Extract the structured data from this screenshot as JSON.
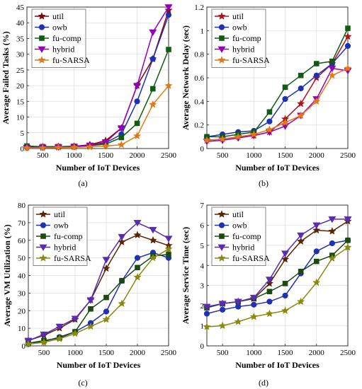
{
  "chart_data": [
    {
      "type": "line",
      "caption": "(a)",
      "xlabel": "Number of IoT Devices",
      "ylabel": "Average Failed Tasks (%)",
      "x": [
        250,
        500,
        750,
        1000,
        1250,
        1500,
        1750,
        2000,
        2250,
        2500
      ],
      "xticks": [
        500,
        1000,
        1500,
        2000,
        2500
      ],
      "xlim": [
        250,
        2500
      ],
      "ylim": [
        0,
        45
      ],
      "yticks": [
        0,
        5,
        10,
        15,
        20,
        25,
        30,
        35,
        40,
        45
      ],
      "ytick_labels": [
        "0",
        "5",
        "10",
        "15",
        "20",
        "25",
        "30",
        "35",
        "40",
        "45"
      ],
      "grid": true,
      "legend_position": "top-left",
      "series": [
        {
          "name": "util",
          "color": "#8b0000",
          "marker": "star",
          "values": [
            0.5,
            0.5,
            0.6,
            0.7,
            1.2,
            2.5,
            6.5,
            20,
            28.5,
            44
          ]
        },
        {
          "name": "owb",
          "color": "#1e30b4",
          "marker": "circle",
          "values": [
            0.5,
            0.5,
            0.6,
            0.7,
            1.0,
            1.8,
            4.5,
            15,
            28.5,
            42.5
          ]
        },
        {
          "name": "fu-comp",
          "color": "#0e5c12",
          "marker": "square",
          "values": [
            0.8,
            0.6,
            0.6,
            0.7,
            0.9,
            1.4,
            3.5,
            8,
            19,
            31.5
          ]
        },
        {
          "name": "hybrid",
          "color": "#9400b8",
          "marker": "triangle-down",
          "values": [
            0.3,
            0.4,
            0.5,
            0.6,
            1.0,
            2.0,
            6.5,
            20,
            37,
            45
          ]
        },
        {
          "name": "fu-SARSA",
          "color": "#e07a16",
          "marker": "star",
          "values": [
            0.2,
            0.2,
            0.3,
            0.4,
            0.5,
            0.8,
            1.2,
            4,
            14,
            20
          ]
        }
      ]
    },
    {
      "type": "line",
      "caption": "(b)",
      "xlabel": "Number of IoT Devices",
      "ylabel": "Average Network Delay (sec)",
      "x": [
        250,
        500,
        750,
        1000,
        1250,
        1500,
        1750,
        2000,
        2250,
        2500
      ],
      "xticks": [
        500,
        1000,
        1500,
        2000,
        2500
      ],
      "xlim": [
        250,
        2500
      ],
      "ylim": [
        0,
        1.2
      ],
      "yticks": [
        0,
        0.2,
        0.4,
        0.6,
        0.8,
        1.0,
        1.2
      ],
      "ytick_labels": [
        "0",
        "0.2",
        "0.4",
        "0.6",
        "0.8",
        "1",
        "1.2"
      ],
      "grid": true,
      "legend_position": "top-left",
      "series": [
        {
          "name": "util",
          "color": "#b0101a",
          "marker": "star",
          "values": [
            0.07,
            0.08,
            0.1,
            0.11,
            0.14,
            0.25,
            0.38,
            0.6,
            0.72,
            0.95
          ]
        },
        {
          "name": "owb",
          "color": "#1e30b4",
          "marker": "circle",
          "values": [
            0.1,
            0.12,
            0.14,
            0.15,
            0.23,
            0.42,
            0.51,
            0.62,
            0.72,
            0.87
          ]
        },
        {
          "name": "fu-comp",
          "color": "#0e5c12",
          "marker": "square",
          "values": [
            0.1,
            0.1,
            0.12,
            0.14,
            0.31,
            0.52,
            0.62,
            0.72,
            0.74,
            1.02
          ]
        },
        {
          "name": "hybrid",
          "color": "#9400b8",
          "marker": "triangle-down",
          "values": [
            0.06,
            0.07,
            0.09,
            0.11,
            0.14,
            0.19,
            0.28,
            0.42,
            0.68,
            0.66
          ]
        },
        {
          "name": "fu-SARSA",
          "color": "#e07a16",
          "marker": "star",
          "values": [
            0.07,
            0.08,
            0.1,
            0.12,
            0.16,
            0.22,
            0.28,
            0.4,
            0.62,
            0.68
          ]
        }
      ]
    },
    {
      "type": "line",
      "caption": "(c)",
      "xlabel": "Number of IoT Devices",
      "ylabel": "Average VM Utilization (%)",
      "x": [
        250,
        500,
        750,
        1000,
        1250,
        1500,
        1750,
        2000,
        2250,
        2500
      ],
      "xticks": [
        500,
        1000,
        1500,
        2000,
        2500
      ],
      "xlim": [
        250,
        2500
      ],
      "ylim": [
        0,
        80
      ],
      "yticks": [
        0,
        10,
        20,
        30,
        40,
        50,
        60,
        70,
        80
      ],
      "ytick_labels": [
        "0",
        "10",
        "20",
        "30",
        "40",
        "50",
        "60",
        "70",
        "80"
      ],
      "grid": true,
      "legend_position": "top-left",
      "series": [
        {
          "name": "util",
          "color": "#5a2400",
          "marker": "star",
          "values": [
            3,
            6,
            10,
            15,
            26,
            44,
            59,
            63,
            60,
            57
          ]
        },
        {
          "name": "owb",
          "color": "#1e30b4",
          "marker": "circle",
          "values": [
            1,
            2.5,
            5,
            8,
            13,
            19.5,
            37,
            50,
            53,
            50
          ]
        },
        {
          "name": "fu-comp",
          "color": "#1a4a10",
          "marker": "square",
          "values": [
            1.5,
            3,
            4.5,
            8,
            21,
            27.5,
            37,
            44.5,
            51,
            52
          ]
        },
        {
          "name": "hybrid",
          "color": "#5a2cb4",
          "marker": "triangle-down",
          "values": [
            3,
            6.5,
            11,
            15.5,
            26,
            49,
            62,
            70,
            66,
            61
          ]
        },
        {
          "name": "fu-SARSA",
          "color": "#8a8a10",
          "marker": "star",
          "values": [
            1,
            2,
            4,
            7,
            11,
            15,
            24,
            39,
            50,
            55
          ]
        }
      ]
    },
    {
      "type": "line",
      "caption": "(d)",
      "xlabel": "Number of IoT Devices",
      "ylabel": "Average Service Time (sec)",
      "x": [
        250,
        500,
        750,
        1000,
        1250,
        1500,
        1750,
        2000,
        2250,
        2500
      ],
      "xticks": [
        500,
        1000,
        1500,
        2000,
        2500
      ],
      "xlim": [
        250,
        2500
      ],
      "ylim": [
        0,
        7
      ],
      "yticks": [
        0,
        1,
        2,
        3,
        4,
        5,
        6,
        7
      ],
      "ytick_labels": [
        "0",
        "1",
        "2",
        "3",
        "4",
        "5",
        "6",
        "7"
      ],
      "grid": true,
      "legend_position": "top-left",
      "series": [
        {
          "name": "util",
          "color": "#5a2400",
          "marker": "star",
          "values": [
            1.9,
            2.1,
            2.2,
            2.35,
            3.1,
            4.3,
            5.2,
            5.75,
            5.7,
            6.2
          ]
        },
        {
          "name": "owb",
          "color": "#1e30b4",
          "marker": "circle",
          "values": [
            1.6,
            1.8,
            1.95,
            2.05,
            2.2,
            2.5,
            3.6,
            4.7,
            5.1,
            5.25
          ]
        },
        {
          "name": "fu-comp",
          "color": "#1a4a10",
          "marker": "square",
          "values": [
            1.9,
            2.1,
            2.2,
            2.35,
            2.7,
            3.1,
            3.7,
            4.2,
            4.5,
            5.25
          ]
        },
        {
          "name": "hybrid",
          "color": "#5a2cb4",
          "marker": "triangle-down",
          "values": [
            1.95,
            2.1,
            2.2,
            2.4,
            3.3,
            4.6,
            5.5,
            6.0,
            6.3,
            6.3
          ]
        },
        {
          "name": "fu-SARSA",
          "color": "#8a8a10",
          "marker": "star",
          "values": [
            0.95,
            1.0,
            1.2,
            1.45,
            1.6,
            1.75,
            2.2,
            3.15,
            4.35,
            4.9
          ]
        }
      ]
    }
  ]
}
